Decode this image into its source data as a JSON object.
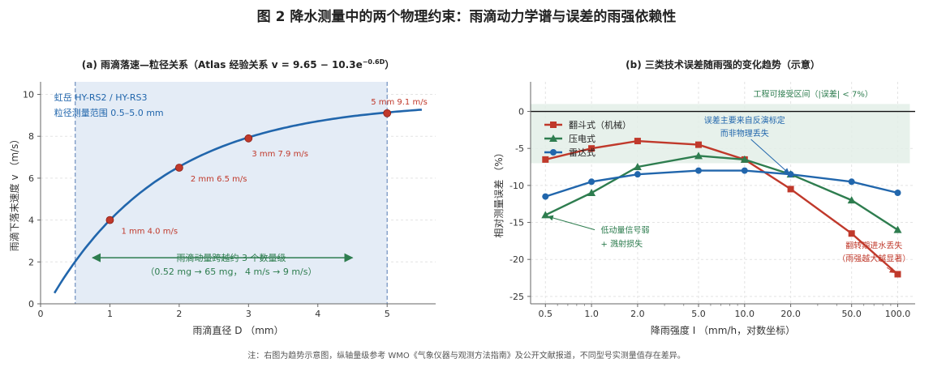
{
  "figure": {
    "title": "图 2  降水测量中的两个物理约束：雨滴动力学谱与误差的雨强依赖性",
    "note": "注：右图为趋势示意图，纵轴量级参考 WMO《气象仪器与观测方法指南》及公开文献报道，不同型号实测量值存在差异。"
  },
  "colors": {
    "curve": "#2166ac",
    "point": "#c0392b",
    "band": "#e4ecf6",
    "band_edge": "#6f8fbf",
    "arrow_green": "#2e7d4f",
    "tipping": "#c0392b",
    "piezo": "#2e7d4f",
    "radar": "#2166ac",
    "acceptable_band": "#e3eee8"
  },
  "chart_data": [
    {
      "type": "line",
      "title_prefix": "(a)  雨滴落速—粒径关系（Atlas 经验关系 v = 9.65 − 10.3e",
      "title_sup": "−0.6D",
      "title_suffix": "）",
      "xlabel": "雨滴直径 D （mm）",
      "ylabel": "雨滴下落末速度 v （m/s）",
      "xlim": [
        0,
        5.7
      ],
      "ylim": [
        0,
        10.6
      ],
      "xticks": [
        0,
        1,
        2,
        3,
        4,
        5
      ],
      "yticks": [
        0,
        2,
        4,
        6,
        8,
        10
      ],
      "grid": true,
      "curve_formula": "v = 9.65 - 10.3*exp(-0.6*D)",
      "curve_range": [
        0.2,
        5.5
      ],
      "band_range": [
        0.5,
        5.0
      ],
      "band_text": [
        "虹岳 HY-RS2 / HY-RS3",
        "粒径测量范围 0.5–5.0 mm"
      ],
      "points": [
        {
          "x": 1,
          "y": 4.0,
          "label": "1 mm  4.0 m/s"
        },
        {
          "x": 2,
          "y": 6.5,
          "label": "2 mm  6.5 m/s"
        },
        {
          "x": 3,
          "y": 7.9,
          "label": "3 mm  7.9 m/s"
        },
        {
          "x": 5,
          "y": 9.1,
          "label": "5 mm  9.1 m/s"
        }
      ],
      "arrow_note": [
        "雨滴动量跨越约 3 个数量级",
        "（0.52 mg → 65 mg， 4 m/s → 9 m/s）"
      ],
      "arrow_range": [
        0.75,
        4.5
      ],
      "arrow_y": 2.2
    },
    {
      "type": "line",
      "title": "(b)  三类技术误差随雨强的变化趋势（示意）",
      "xlabel": "降雨强度 I （mm/h，对数坐标）",
      "ylabel": "相对测量误差 （%）",
      "xscale": "log",
      "xlim": [
        0.4,
        130
      ],
      "ylim": [
        -26,
        4
      ],
      "x": [
        0.5,
        1.0,
        2.0,
        5.0,
        10.0,
        20.0,
        50.0,
        100.0
      ],
      "xticklabels": [
        "0.5",
        "1.0",
        "2.0",
        "5.0",
        "10.0",
        "20.0",
        "50.0",
        "100.0"
      ],
      "yticks": [
        0,
        -5,
        -10,
        -15,
        -20,
        -25
      ],
      "grid": true,
      "acceptable_band": [
        -7,
        1
      ],
      "acceptable_label": "工程可接受区间（|误差| < 7%）",
      "series": [
        {
          "name": "翻斗式（机械）",
          "marker": "square",
          "values": [
            -6.5,
            -5,
            -4,
            -4.5,
            -6.5,
            -10.5,
            -16.5,
            -22
          ]
        },
        {
          "name": "压电式",
          "marker": "triangle",
          "values": [
            -14,
            -11,
            -7.5,
            -6,
            -6.5,
            -8.5,
            -12,
            -16
          ]
        },
        {
          "name": "雷达式",
          "marker": "circle",
          "values": [
            -11.5,
            -9.5,
            -8.5,
            -8,
            -8,
            -8.5,
            -9.5,
            -11
          ]
        }
      ],
      "annotations": {
        "radar_note": [
          "误差主要来自反演标定",
          "而非物理丢失"
        ],
        "piezo_note": [
          "低动量信号弱",
          "+ 溅射损失"
        ],
        "tipping_note": [
          "翻转期进水丢失",
          "（雨强越大越显著）"
        ]
      }
    }
  ]
}
